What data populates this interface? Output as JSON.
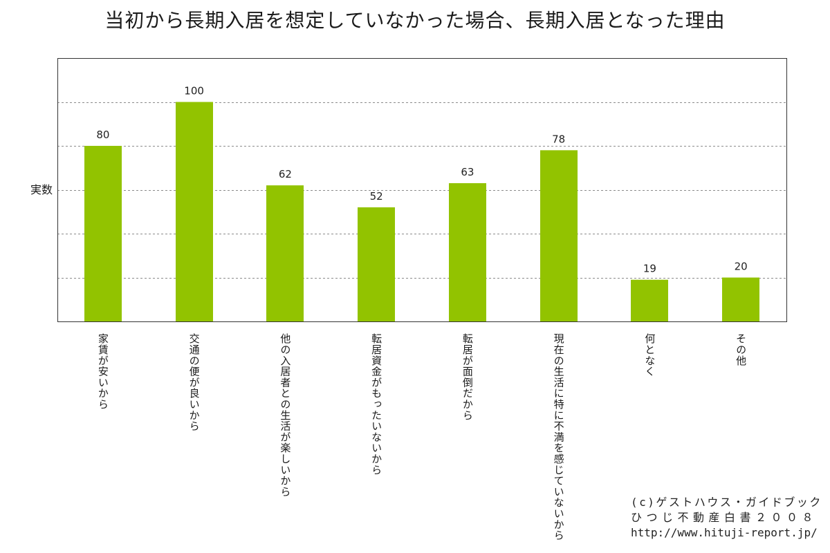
{
  "chart_data": {
    "type": "bar",
    "title": "当初から長期入居を想定していなかった場合、長期入居となった理由",
    "ylabel": "実数",
    "categories": [
      "家賃が安いから",
      "交通の便が良いから",
      "他の入居者との生活が楽しいから",
      "転居資金がもったいないから",
      "転居が面倒だから",
      "現在の生活に特に不満を感じていないから",
      "何となく",
      "その他"
    ],
    "values": [
      80,
      100,
      62,
      52,
      63,
      78,
      19,
      20
    ],
    "ylim": [
      0,
      120
    ],
    "gridlines": [
      20,
      40,
      60,
      80,
      100
    ],
    "grid": true,
    "bar_color": "#92c300",
    "gridline_color": "#8a8a8a",
    "frame_color": "#333333"
  },
  "credit": {
    "line1": "(c)ゲストハウス・ガイドブック",
    "line2": "ひつじ不動産白書２００８",
    "line3": "http://www.hituji-report.jp/"
  }
}
